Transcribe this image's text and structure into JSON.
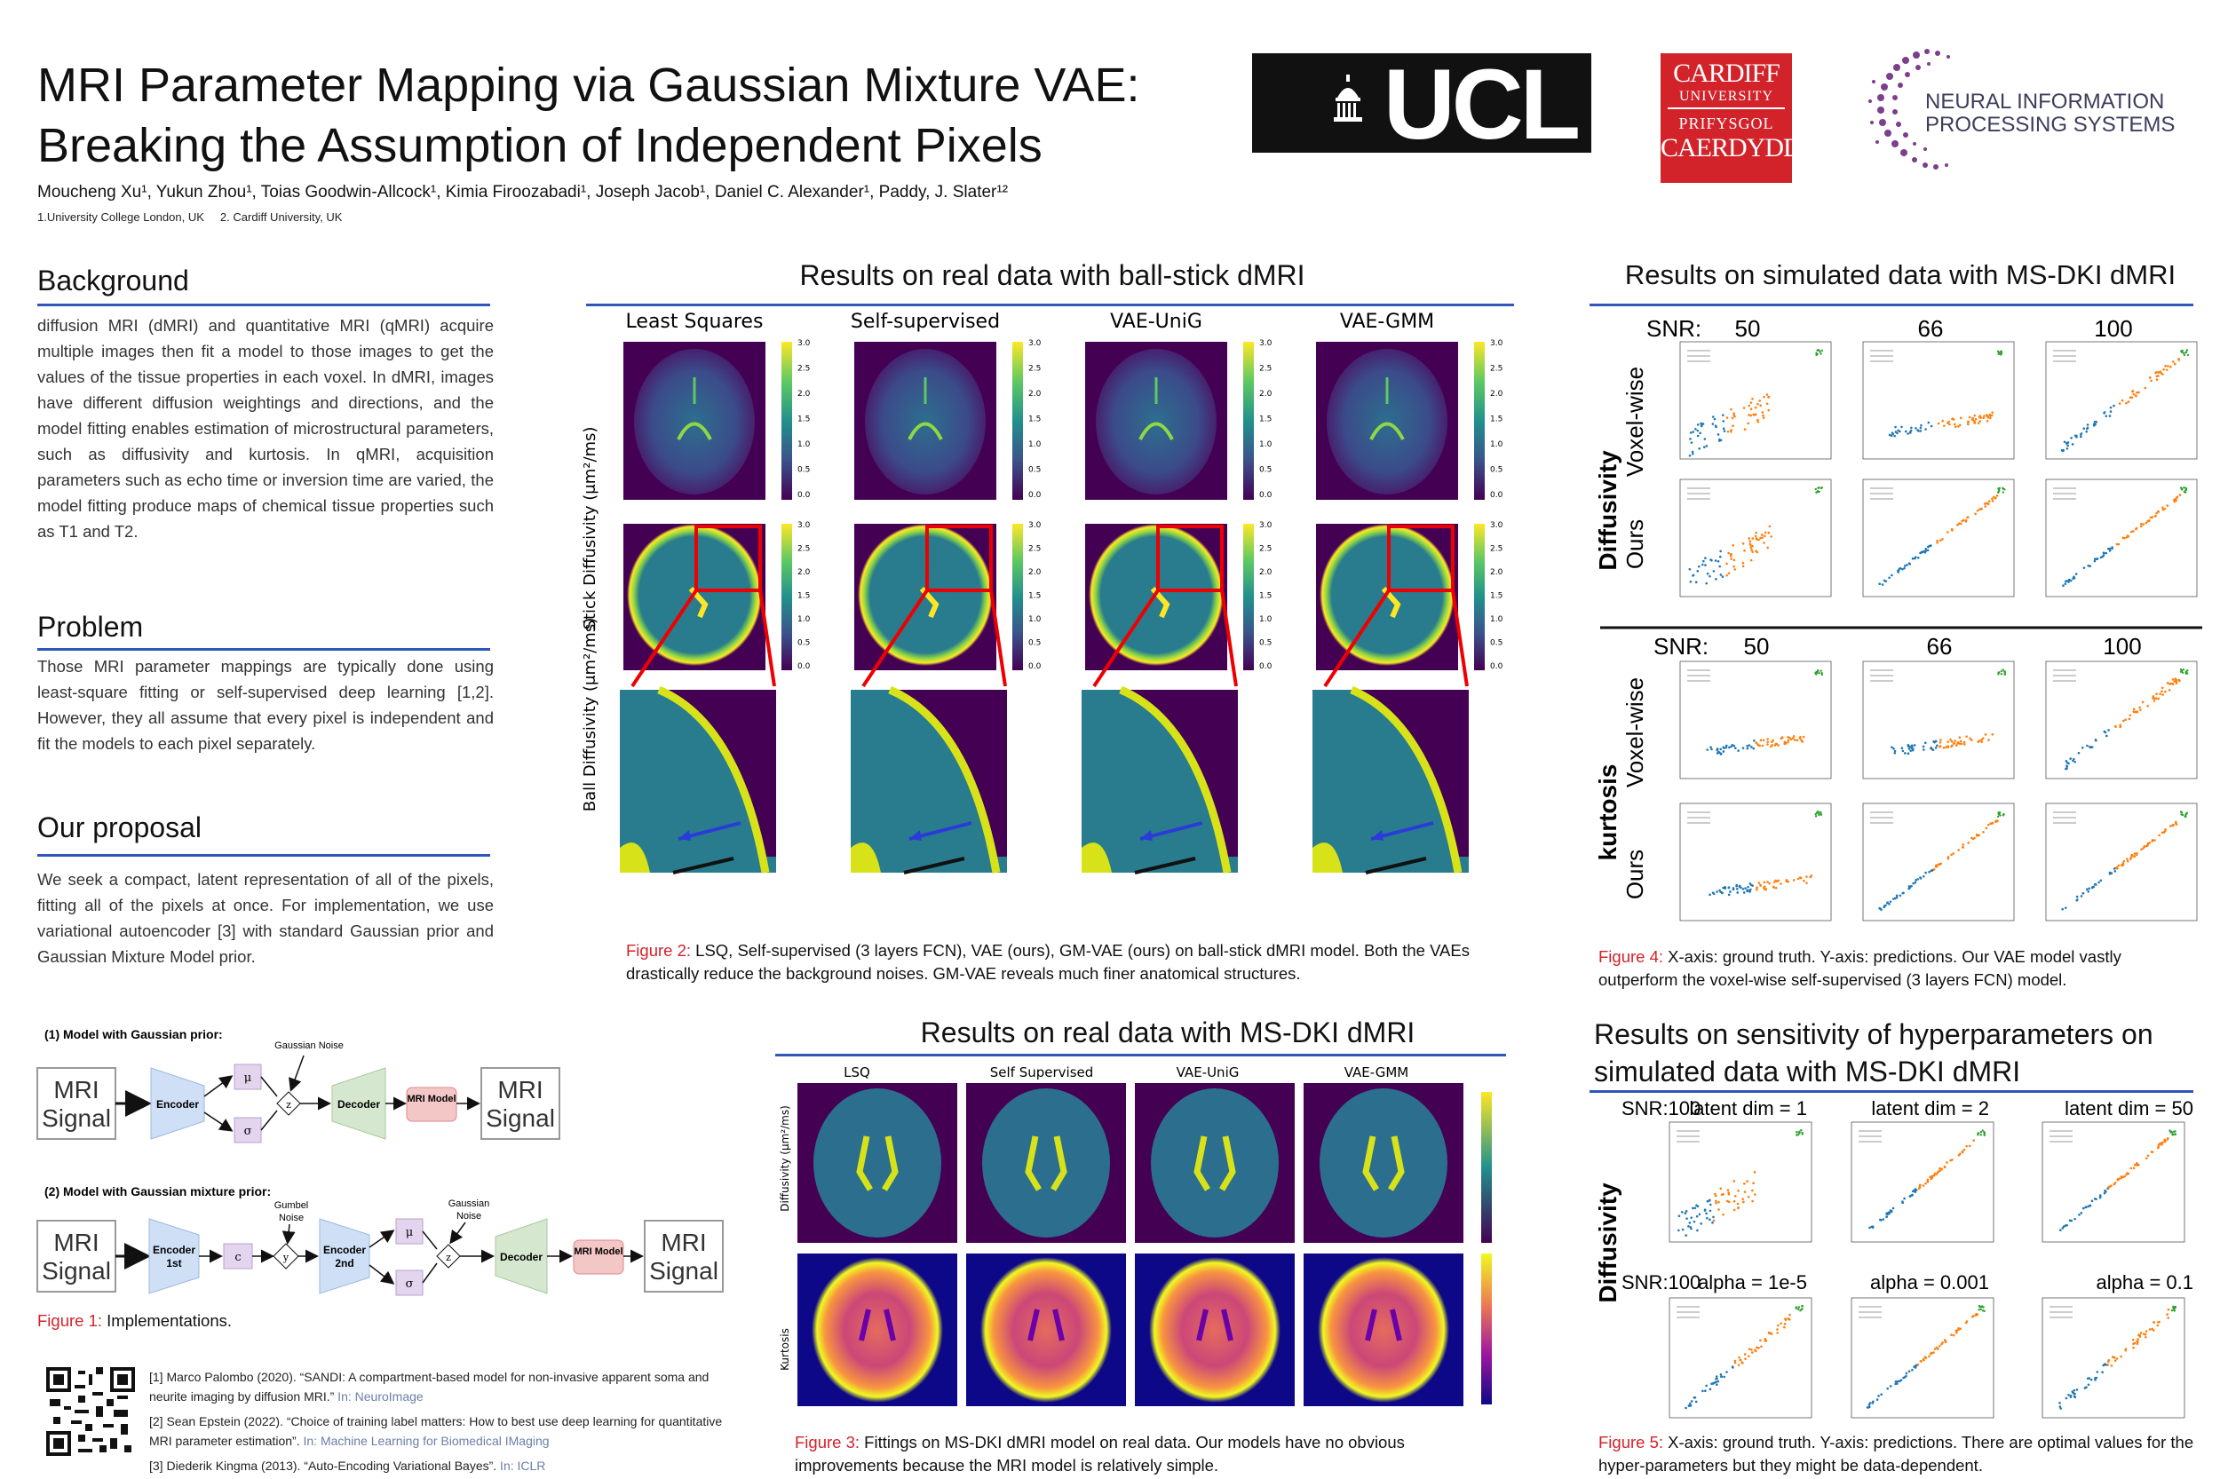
{
  "header": {
    "title_line1": "MRI Parameter Mapping via Gaussian Mixture VAE:",
    "title_line2": "Breaking the Assumption of Independent Pixels",
    "authors": "Moucheng Xu¹, Yukun Zhou¹, Toias Goodwin-Allcock¹, Kimia Firoozabadi¹, Joseph Jacob¹, Daniel C. Alexander¹, Paddy, J. Slater¹²",
    "affiliations": "1.University College London, UK     2. Cardiff University, UK"
  },
  "logos": {
    "ucl": "UCL",
    "cardiff_1": "CARDIFF",
    "cardiff_2": "UNIVERSITY",
    "cardiff_3": "PRIFYSGOL",
    "cardiff_4": "CAERDYDD",
    "neurips_1": "NEURAL INFORMATION",
    "neurips_2": "PROCESSING SYSTEMS"
  },
  "background": {
    "heading": "Background",
    "text": "diffusion MRI (dMRI) and quantitative MRI (qMRI) acquire multiple images then fit a model to those images to get the values of the tissue properties in each voxel. In dMRI, images have different diffusion weightings and directions, and the model fitting enables estimation of microstructural parameters, such as diffusivity and kurtosis. In qMRI, acquisition parameters such as echo time or inversion time are varied, the model fitting produce maps of chemical tissue properties such as T1 and T2."
  },
  "problem": {
    "heading": "Problem",
    "text": "Those MRI parameter mappings are typically done using least-square fitting or self-supervised deep learning [1,2]. However, they all assume that every pixel is independent and fit the models to each pixel separately."
  },
  "proposal": {
    "heading": "Our proposal",
    "text": "We seek a compact, latent representation of all of the pixels, fitting all of the pixels at once. For implementation, we use variational autoencoder [3] with standard Gaussian prior and Gaussian Mixture Model prior."
  },
  "figure1": {
    "label_a": "(1) Model with Gaussian prior:",
    "label_b": "(2) Model with Gaussian mixture prior:",
    "mri_signal": "MRI Signal",
    "mri_line1": "MRI",
    "mri_line2": "Signal",
    "encoder": "Encoder",
    "encoder1st": "Encoder 1st",
    "encoder2nd": "Encoder 2nd",
    "decoder": "Decoder",
    "mri_model": "MRI Model",
    "mu": "μ",
    "sigma": "σ",
    "z": "z",
    "c": "c",
    "y": "y",
    "gaussian_noise": "Gaussian Noise",
    "gumbel_noise": "Gumbel Noise",
    "caption_label": "Figure 1:",
    "caption_text": " Implementations."
  },
  "references": [
    {
      "text": "[1] Marco Palombo (2020). “SANDI: A compartment-based model for non-invasive apparent soma and neurite imaging by diffusion MRI.”",
      "src": " In: NeuroImage"
    },
    {
      "text": "[2] Sean Epstein (2022). “Choice of training label matters: How to best use deep learning for quantitative MRI parameter estimation”.",
      "src": " In: Machine Learning for Biomedical IMaging"
    },
    {
      "text": "[3] Diederik Kingma (2013). “Auto-Encoding Variational Bayes”.",
      "src": " In: ICLR"
    }
  ],
  "fig2": {
    "heading": "Results on real data with ball-stick dMRI",
    "col_titles": [
      "Least Squares",
      "Self-supervised",
      "VAE-UniG",
      "VAE-GMM"
    ],
    "row1_label": "Stick Diffusivity (μm²/ms)",
    "row2_label": "Ball Diffusivity (μm²/ms)",
    "colorbar_ticks": [
      "3.0",
      "2.5",
      "2.0",
      "1.5",
      "1.0",
      "0.5",
      "0.0"
    ],
    "caption_label": "Figure 2:",
    "caption_text": " LSQ, Self-supervised (3 layers FCN), VAE (ours), GM-VAE (ours) on ball-stick dMRI model. Both the VAEs drastically reduce the background noises. GM-VAE reveals much finer anatomical structures."
  },
  "fig3": {
    "heading": "Results on real data with MS-DKI dMRI",
    "col_titles": [
      "LSQ",
      "Self Supervised",
      "VAE-UniG",
      "VAE-GMM"
    ],
    "row1_label": "Diffusivity (μm²/ms)",
    "row2_label": "Kurtosis",
    "caption_label": "Figure 3:",
    "caption_text": " Fittings on MS-DKI dMRI model on real data. Our models have no obvious improvements because the MRI model is relatively simple."
  },
  "fig4": {
    "heading": "Results on simulated data with MS-DKI dMRI",
    "snr_label": "SNR:",
    "snr_values": [
      "50",
      "66",
      "100"
    ],
    "row_voxel": "Voxel-wise",
    "row_ours": "Ours",
    "group1": "Diffusivity",
    "group2": "kurtosis",
    "caption_label": "Figure 4:",
    "caption_text": " X-axis: ground truth. Y-axis: predictions. Our VAE model vastly outperform the voxel-wise self-supervised (3 layers FCN) model."
  },
  "fig5": {
    "heading_line1": "Results on sensitivity of hyperparameters on",
    "heading_line2": "simulated data with MS-DKI dMRI",
    "snr_label": "SNR:100",
    "latent_titles": [
      "latent dim = 1",
      "latent dim = 2",
      "latent dim = 50"
    ],
    "alpha_titles": [
      "alpha = 1e-5",
      "alpha = 0.001",
      "alpha = 0.1"
    ],
    "group": "Diffusivity",
    "caption_label": "Figure 5:",
    "caption_text": " X-axis: ground truth. Y-axis: predictions. There are optimal values for the hyper-parameters but they might be data-dependent."
  }
}
